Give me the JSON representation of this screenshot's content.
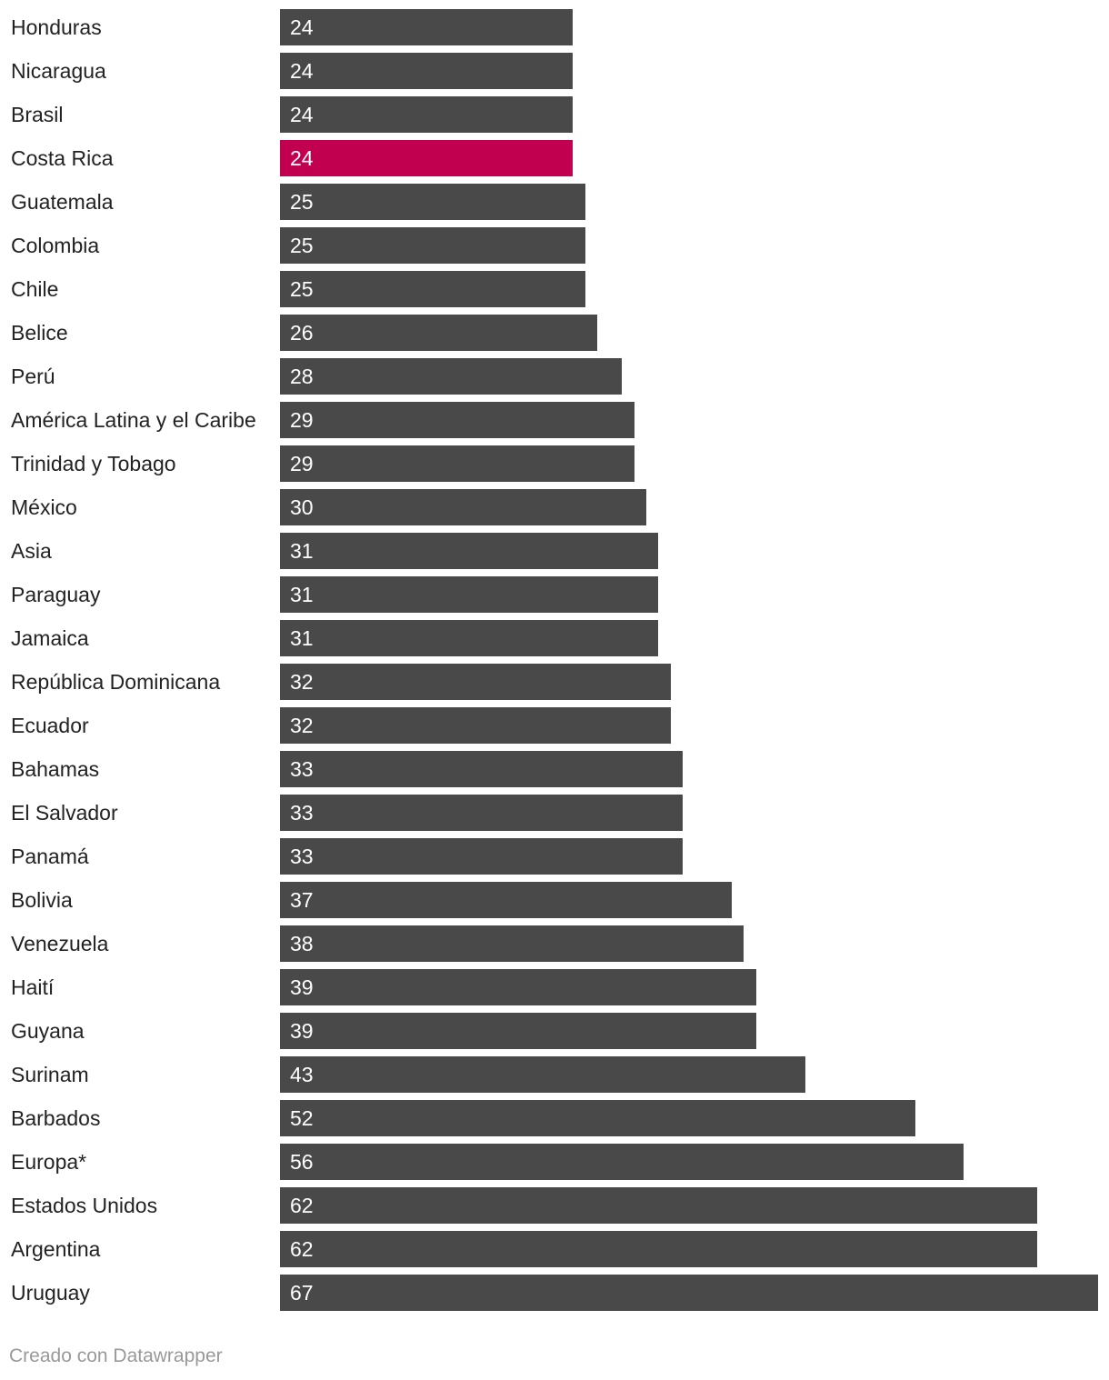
{
  "chart_data": {
    "type": "bar",
    "orientation": "horizontal",
    "categories": [
      "Honduras",
      "Nicaragua",
      "Brasil",
      "Costa Rica",
      "Guatemala",
      "Colombia",
      "Chile",
      "Belice",
      "Perú",
      "América Latina y el Caribe",
      "Trinidad y Tobago",
      "México",
      "Asia",
      "Paraguay",
      "Jamaica",
      "República Dominicana",
      "Ecuador",
      "Bahamas",
      "El Salvador",
      "Panamá",
      "Bolivia",
      "Venezuela",
      "Haití",
      "Guyana",
      "Surinam",
      "Barbados",
      "Europa*",
      "Estados Unidos",
      "Argentina",
      "Uruguay"
    ],
    "values": [
      24,
      24,
      24,
      24,
      25,
      25,
      25,
      26,
      28,
      29,
      29,
      30,
      31,
      31,
      31,
      32,
      32,
      33,
      33,
      33,
      37,
      38,
      39,
      39,
      43,
      52,
      56,
      62,
      62,
      67
    ],
    "highlight": "Costa Rica",
    "colors": {
      "bar": "#494949",
      "highlight": "#c1004f"
    },
    "value_labels": "inside-left",
    "xlim": [
      0,
      67
    ],
    "grid": false,
    "legend": "none"
  },
  "footer": {
    "credit": "Creado con Datawrapper"
  }
}
